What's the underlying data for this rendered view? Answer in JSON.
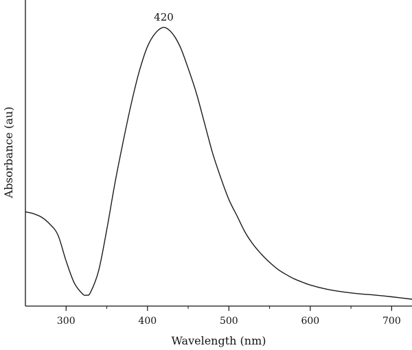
{
  "chart_data": {
    "type": "line",
    "title": "",
    "xlabel": "Wavelength (nm)",
    "ylabel": "Absorbance (au)",
    "xlim": [
      250,
      725
    ],
    "ylim": [
      0.0,
      1.0
    ],
    "xticks": [
      300,
      400,
      500,
      600,
      700
    ],
    "minor_xticks": [
      350,
      450,
      550,
      650
    ],
    "y_tick_labels_shown": false,
    "grid": false,
    "legend": "none",
    "line_color": "#1a1a1a",
    "series": [
      {
        "x": [
          250,
          260,
          270,
          280,
          290,
          300,
          310,
          320,
          325,
          330,
          340,
          350,
          360,
          370,
          380,
          390,
          400,
          410,
          420,
          430,
          440,
          450,
          460,
          470,
          480,
          490,
          500,
          510,
          520,
          530,
          540,
          550,
          560,
          570,
          580,
          590,
          600,
          620,
          640,
          660,
          680,
          700,
          725
        ],
        "y": [
          0.345,
          0.338,
          0.325,
          0.3,
          0.26,
          0.165,
          0.085,
          0.045,
          0.04,
          0.05,
          0.13,
          0.28,
          0.45,
          0.6,
          0.74,
          0.86,
          0.95,
          1.0,
          1.02,
          1.0,
          0.95,
          0.87,
          0.78,
          0.67,
          0.56,
          0.47,
          0.39,
          0.33,
          0.27,
          0.225,
          0.19,
          0.16,
          0.135,
          0.116,
          0.1,
          0.088,
          0.077,
          0.062,
          0.052,
          0.045,
          0.04,
          0.034,
          0.025
        ]
      }
    ],
    "annotations": [
      {
        "text": "420",
        "x": 420,
        "y": 1.02
      }
    ]
  }
}
